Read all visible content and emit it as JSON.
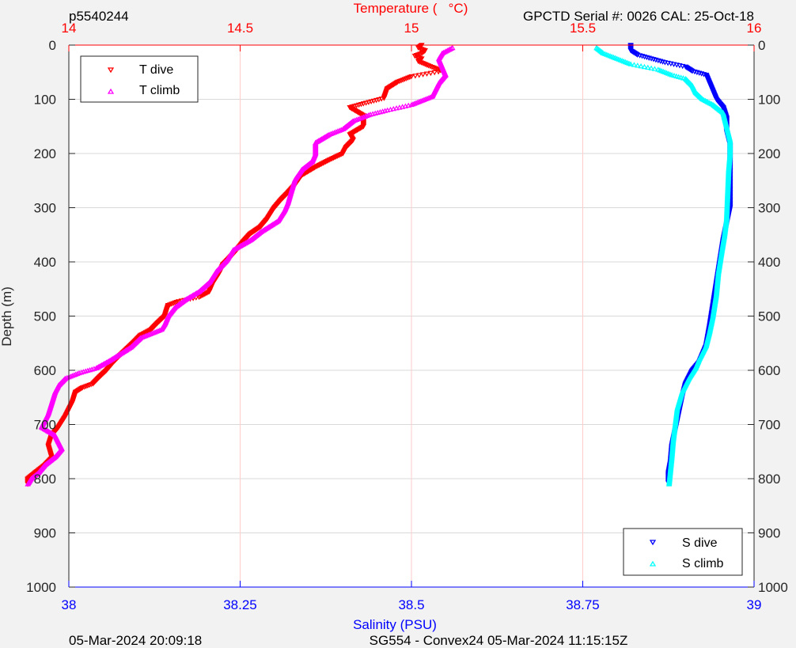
{
  "header": {
    "left": "p5540244",
    "right": "GPCTD Serial #: 0026 CAL: 25-Oct-18"
  },
  "footer": {
    "left": "05-Mar-2024 20:09:18",
    "center": "SG554 - Convex24 05-Mar-2024 11:15:15Z"
  },
  "colors": {
    "t_dive": "#ff0000",
    "t_climb": "#ff00ff",
    "s_dive": "#0000ff",
    "s_climb": "#00ffff",
    "temp_axis": "#ff0000",
    "sal_axis": "#0000ff",
    "grid_temp": "#ffcccc",
    "grid_depth": "#d9d9d9"
  },
  "chart_data": {
    "type": "scatter",
    "ylabel": "Depth (m)",
    "ylim": [
      1000,
      0
    ],
    "y_ticks": [
      0,
      100,
      200,
      300,
      400,
      500,
      600,
      700,
      800,
      900,
      1000
    ],
    "top_axis": {
      "label": "Temperature (   °C)",
      "range": [
        14,
        16
      ],
      "ticks": [
        14,
        14.5,
        15,
        15.5,
        16
      ]
    },
    "bottom_axis": {
      "label": "Salinity (PSU)",
      "range": [
        38,
        39
      ],
      "ticks": [
        "38",
        "38.25",
        "38.5",
        "38.75",
        "39"
      ]
    },
    "grid": true,
    "legend_temp": {
      "placement": "top-left",
      "entries": [
        "T dive",
        "T climb"
      ]
    },
    "legend_sal": {
      "placement": "bottom-right",
      "entries": [
        "S dive",
        "S climb"
      ]
    },
    "series": [
      {
        "name": "T dive",
        "axis": "temperature",
        "marker": "down-triangle",
        "points": [
          [
            15.03,
            0
          ],
          [
            15.02,
            5
          ],
          [
            15.04,
            10
          ],
          [
            15.03,
            15
          ],
          [
            15.01,
            20
          ],
          [
            15.03,
            25
          ],
          [
            15.02,
            30
          ],
          [
            15.05,
            38
          ],
          [
            15.09,
            48
          ],
          [
            15.0,
            58
          ],
          [
            14.96,
            68
          ],
          [
            14.93,
            80
          ],
          [
            14.92,
            98
          ],
          [
            14.86,
            108
          ],
          [
            14.82,
            115
          ],
          [
            14.86,
            130
          ],
          [
            14.86,
            150
          ],
          [
            14.82,
            165
          ],
          [
            14.83,
            175
          ],
          [
            14.81,
            188
          ],
          [
            14.8,
            200
          ],
          [
            14.76,
            212
          ],
          [
            14.72,
            225
          ],
          [
            14.68,
            240
          ],
          [
            14.66,
            258
          ],
          [
            14.64,
            272
          ],
          [
            14.62,
            285
          ],
          [
            14.6,
            300
          ],
          [
            14.58,
            320
          ],
          [
            14.56,
            335
          ],
          [
            14.53,
            348
          ],
          [
            14.51,
            362
          ],
          [
            14.49,
            378
          ],
          [
            14.47,
            392
          ],
          [
            14.45,
            405
          ],
          [
            14.44,
            420
          ],
          [
            14.42,
            440
          ],
          [
            14.41,
            455
          ],
          [
            14.38,
            465
          ],
          [
            14.32,
            473
          ],
          [
            14.29,
            480
          ],
          [
            14.28,
            500
          ],
          [
            14.26,
            512
          ],
          [
            14.24,
            525
          ],
          [
            14.21,
            535
          ],
          [
            14.19,
            548
          ],
          [
            14.17,
            560
          ],
          [
            14.15,
            572
          ],
          [
            14.13,
            585
          ],
          [
            14.11,
            600
          ],
          [
            14.09,
            612
          ],
          [
            14.07,
            625
          ],
          [
            14.04,
            632
          ],
          [
            14.02,
            640
          ],
          [
            14.01,
            660
          ],
          [
            13.99,
            685
          ],
          [
            13.97,
            705
          ],
          [
            13.95,
            720
          ],
          [
            13.94,
            740
          ],
          [
            13.95,
            762
          ],
          [
            13.93,
            775
          ],
          [
            13.9,
            790
          ],
          [
            13.88,
            800
          ],
          [
            13.88,
            810
          ]
        ]
      },
      {
        "name": "T climb",
        "axis": "temperature",
        "marker": "up-triangle",
        "points": [
          [
            15.12,
            5
          ],
          [
            15.09,
            15
          ],
          [
            15.08,
            25
          ],
          [
            15.09,
            40
          ],
          [
            15.1,
            55
          ],
          [
            15.08,
            70
          ],
          [
            15.06,
            95
          ],
          [
            15.0,
            110
          ],
          [
            14.93,
            120
          ],
          [
            14.88,
            128
          ],
          [
            14.83,
            140
          ],
          [
            14.8,
            155
          ],
          [
            14.76,
            165
          ],
          [
            14.72,
            180
          ],
          [
            14.72,
            200
          ],
          [
            14.71,
            215
          ],
          [
            14.68,
            230
          ],
          [
            14.66,
            248
          ],
          [
            14.65,
            268
          ],
          [
            14.64,
            290
          ],
          [
            14.63,
            305
          ],
          [
            14.61,
            325
          ],
          [
            14.56,
            345
          ],
          [
            14.53,
            360
          ],
          [
            14.48,
            378
          ],
          [
            14.46,
            398
          ],
          [
            14.43,
            418
          ],
          [
            14.41,
            438
          ],
          [
            14.38,
            455
          ],
          [
            14.34,
            470
          ],
          [
            14.31,
            484
          ],
          [
            14.29,
            500
          ],
          [
            14.28,
            515
          ],
          [
            14.27,
            525
          ],
          [
            14.21,
            540
          ],
          [
            14.18,
            558
          ],
          [
            14.15,
            570
          ],
          [
            14.12,
            582
          ],
          [
            14.08,
            596
          ],
          [
            14.03,
            605
          ],
          [
            13.99,
            615
          ],
          [
            13.97,
            628
          ],
          [
            13.96,
            640
          ],
          [
            13.95,
            660
          ],
          [
            13.94,
            680
          ],
          [
            13.92,
            705
          ],
          [
            13.96,
            720
          ],
          [
            13.98,
            745
          ],
          [
            13.96,
            760
          ],
          [
            13.93,
            775
          ],
          [
            13.91,
            790
          ],
          [
            13.89,
            800
          ],
          [
            13.88,
            810
          ]
        ]
      },
      {
        "name": "S dive",
        "axis": "salinity",
        "marker": "down-triangle",
        "points": [
          [
            38.82,
            0
          ],
          [
            38.82,
            10
          ],
          [
            38.83,
            18
          ],
          [
            38.85,
            25
          ],
          [
            38.87,
            32
          ],
          [
            38.9,
            40
          ],
          [
            38.91,
            48
          ],
          [
            38.93,
            55
          ],
          [
            38.935,
            70
          ],
          [
            38.94,
            85
          ],
          [
            38.945,
            100
          ],
          [
            38.955,
            115
          ],
          [
            38.96,
            135
          ],
          [
            38.96,
            160
          ],
          [
            38.965,
            185
          ],
          [
            38.965,
            210
          ],
          [
            38.965,
            240
          ],
          [
            38.965,
            270
          ],
          [
            38.965,
            300
          ],
          [
            38.96,
            330
          ],
          [
            38.955,
            360
          ],
          [
            38.95,
            400
          ],
          [
            38.945,
            440
          ],
          [
            38.94,
            480
          ],
          [
            38.935,
            520
          ],
          [
            38.93,
            555
          ],
          [
            38.92,
            585
          ],
          [
            38.91,
            600
          ],
          [
            38.9,
            625
          ],
          [
            38.895,
            650
          ],
          [
            38.89,
            680
          ],
          [
            38.885,
            710
          ],
          [
            38.88,
            740
          ],
          [
            38.878,
            770
          ],
          [
            38.875,
            790
          ],
          [
            38.875,
            808
          ]
        ]
      },
      {
        "name": "S climb",
        "axis": "salinity",
        "marker": "up-triangle",
        "points": [
          [
            38.77,
            5
          ],
          [
            38.78,
            15
          ],
          [
            38.8,
            25
          ],
          [
            38.82,
            35
          ],
          [
            38.84,
            40
          ],
          [
            38.86,
            45
          ],
          [
            38.88,
            55
          ],
          [
            38.9,
            62
          ],
          [
            38.91,
            75
          ],
          [
            38.915,
            88
          ],
          [
            38.925,
            100
          ],
          [
            38.94,
            110
          ],
          [
            38.955,
            125
          ],
          [
            38.96,
            150
          ],
          [
            38.965,
            175
          ],
          [
            38.965,
            200
          ],
          [
            38.963,
            230
          ],
          [
            38.962,
            260
          ],
          [
            38.961,
            290
          ],
          [
            38.96,
            320
          ],
          [
            38.957,
            350
          ],
          [
            38.953,
            380
          ],
          [
            38.948,
            420
          ],
          [
            38.945,
            460
          ],
          [
            38.94,
            500
          ],
          [
            38.935,
            530
          ],
          [
            38.93,
            555
          ],
          [
            38.92,
            580
          ],
          [
            38.915,
            595
          ],
          [
            38.905,
            615
          ],
          [
            38.895,
            640
          ],
          [
            38.888,
            670
          ],
          [
            38.885,
            700
          ],
          [
            38.882,
            730
          ],
          [
            38.88,
            760
          ],
          [
            38.878,
            785
          ],
          [
            38.876,
            810
          ]
        ]
      }
    ]
  }
}
